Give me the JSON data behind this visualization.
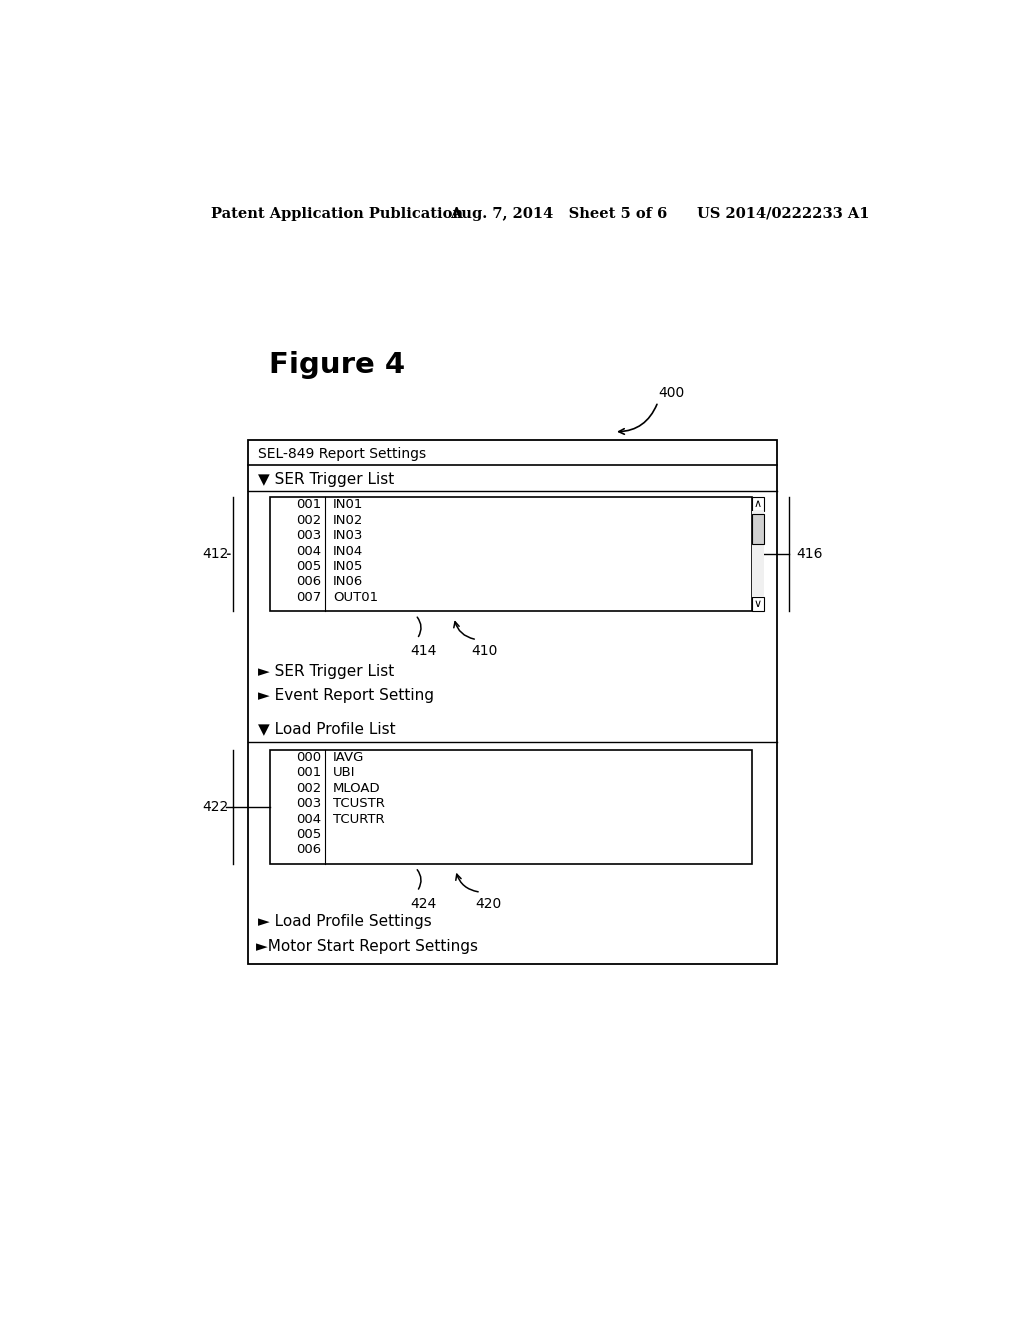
{
  "header_left": "Patent Application Publication",
  "header_mid": "Aug. 7, 2014   Sheet 5 of 6",
  "header_right": "US 2014/0222233 A1",
  "figure_label": "Figure 4",
  "ref_400": "400",
  "outer_box_title": "SEL-849 Report Settings",
  "section1_title": "▼ SER Trigger List",
  "ser_list": [
    [
      "001",
      "IN01"
    ],
    [
      "002",
      "IN02"
    ],
    [
      "003",
      "IN03"
    ],
    [
      "004",
      "IN04"
    ],
    [
      "005",
      "IN05"
    ],
    [
      "006",
      "IN06"
    ],
    [
      "007",
      "OUT01"
    ]
  ],
  "ref_412": "412",
  "ref_416": "416",
  "ref_414": "414",
  "ref_410": "410",
  "collapsed1": "► SER Trigger List",
  "collapsed2": "► Event Report Setting",
  "section2_title": "▼ Load Profile List",
  "load_list": [
    [
      "000",
      "IAVG"
    ],
    [
      "001",
      "UBI"
    ],
    [
      "002",
      "MLOAD"
    ],
    [
      "003",
      "TCUSTR"
    ],
    [
      "004",
      "TCURTR"
    ],
    [
      "005",
      ""
    ],
    [
      "006",
      ""
    ]
  ],
  "ref_422": "422",
  "ref_424": "424",
  "ref_420": "420",
  "collapsed3": "► Load Profile Settings",
  "collapsed4": "►Motor Start Report Settings",
  "bg_color": "#ffffff",
  "text_color": "#000000"
}
